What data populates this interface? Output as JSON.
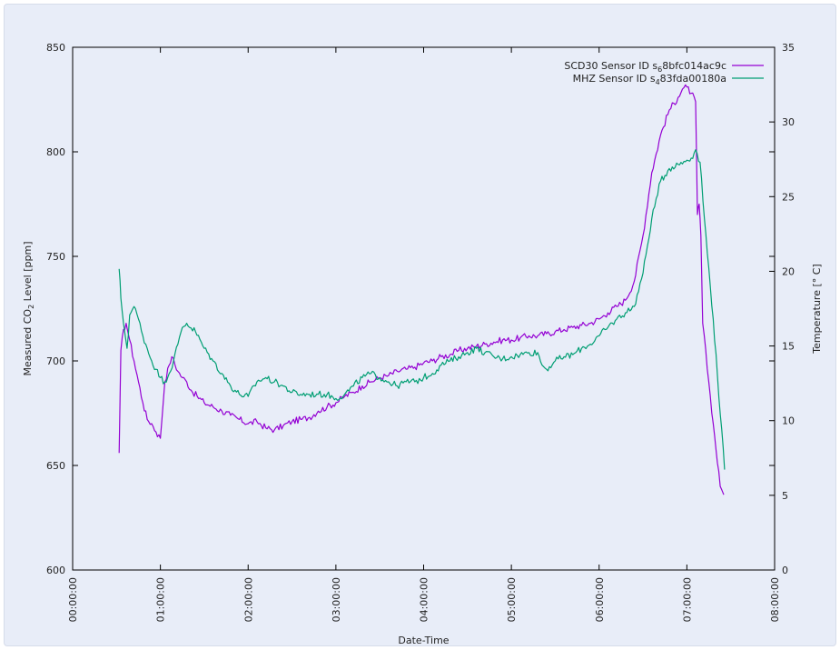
{
  "chart_data": {
    "type": "line",
    "title": "",
    "xlabel": "Date-Time",
    "ylabel": "Measured CO₂ Level [ppm]",
    "ylabel_parts": [
      "Measured CO",
      "2",
      " Level [ppm]"
    ],
    "y2label": "Temperature [° C]",
    "xlim": [
      0,
      8
    ],
    "ylim": [
      600,
      850
    ],
    "y2lim": [
      0,
      35
    ],
    "x_ticks": [
      "00:00:00",
      "01:00:00",
      "02:00:00",
      "03:00:00",
      "04:00:00",
      "05:00:00",
      "06:00:00",
      "07:00:00",
      "08:00:00"
    ],
    "y_ticks": [
      600,
      650,
      700,
      750,
      800,
      850
    ],
    "y2_ticks": [
      0,
      5,
      10,
      15,
      20,
      25,
      30,
      35
    ],
    "legend_position": "top-right",
    "grid": false,
    "series": [
      {
        "name": "SCD30 Sensor ID s₆8bfc014ac9c",
        "name_parts": [
          "SCD30 Sensor ID s",
          "6",
          "8bfc014ac9c"
        ],
        "axis": "left",
        "color": "#9400d3",
        "x": [
          0.53,
          0.55,
          0.58,
          0.61,
          0.65,
          0.7,
          0.75,
          0.8,
          0.85,
          0.9,
          0.95,
          1.0,
          1.05,
          1.1,
          1.13,
          1.2,
          1.25,
          1.3,
          1.35,
          1.42,
          1.5,
          1.6,
          1.7,
          1.8,
          1.9,
          2.0,
          2.1,
          2.2,
          2.3,
          2.4,
          2.5,
          2.6,
          2.7,
          2.8,
          2.9,
          3.0,
          3.1,
          3.2,
          3.3,
          3.4,
          3.5,
          3.6,
          3.7,
          3.8,
          3.9,
          4.0,
          4.1,
          4.2,
          4.3,
          4.4,
          4.5,
          4.6,
          4.7,
          4.8,
          4.9,
          5.0,
          5.1,
          5.2,
          5.3,
          5.4,
          5.5,
          5.6,
          5.7,
          5.8,
          5.9,
          6.0,
          6.1,
          6.2,
          6.3,
          6.4,
          6.5,
          6.6,
          6.7,
          6.8,
          6.9,
          6.95,
          7.0,
          7.05,
          7.1,
          7.12,
          7.14,
          7.16,
          7.18,
          7.25,
          7.3,
          7.38,
          7.42
        ],
        "values": [
          656,
          705,
          715,
          718,
          710,
          700,
          690,
          680,
          672,
          670,
          666,
          663,
          690,
          698,
          702,
          695,
          692,
          690,
          686,
          683,
          680,
          678,
          676,
          674,
          672,
          670,
          671,
          668,
          667,
          669,
          671,
          672,
          673,
          676,
          678,
          680,
          683,
          685,
          688,
          690,
          692,
          693,
          695,
          696,
          697,
          699,
          700,
          702,
          703,
          705,
          706,
          707,
          708,
          709,
          710,
          710,
          711,
          712,
          712,
          713,
          714,
          715,
          716,
          717,
          718,
          720,
          723,
          726,
          729,
          738,
          760,
          790,
          808,
          820,
          826,
          830,
          831,
          828,
          824,
          770,
          775,
          760,
          718,
          690,
          670,
          640,
          636
        ]
      },
      {
        "name": "MHZ Sensor ID s₄83fda00180a",
        "name_parts": [
          "MHZ Sensor ID s",
          "4",
          "83fda00180a"
        ],
        "axis": "left",
        "color": "#009e73",
        "x": [
          0.53,
          0.55,
          0.58,
          0.62,
          0.65,
          0.7,
          0.75,
          0.8,
          0.85,
          0.9,
          0.95,
          1.0,
          1.05,
          1.1,
          1.15,
          1.2,
          1.25,
          1.3,
          1.4,
          1.5,
          1.6,
          1.7,
          1.8,
          1.9,
          2.0,
          2.1,
          2.2,
          2.3,
          2.4,
          2.5,
          2.6,
          2.7,
          2.8,
          2.9,
          3.0,
          3.1,
          3.2,
          3.3,
          3.4,
          3.5,
          3.6,
          3.7,
          3.8,
          3.9,
          4.0,
          4.1,
          4.2,
          4.3,
          4.4,
          4.5,
          4.6,
          4.7,
          4.8,
          4.9,
          5.0,
          5.1,
          5.2,
          5.3,
          5.35,
          5.4,
          5.5,
          5.6,
          5.7,
          5.8,
          5.9,
          6.0,
          6.1,
          6.2,
          6.3,
          6.4,
          6.5,
          6.6,
          6.7,
          6.8,
          6.9,
          7.0,
          7.05,
          7.1,
          7.15,
          7.2,
          7.3,
          7.43
        ],
        "values": [
          744,
          730,
          718,
          706,
          722,
          726,
          720,
          712,
          706,
          700,
          696,
          692,
          690,
          694,
          700,
          708,
          716,
          718,
          714,
          706,
          700,
          694,
          688,
          684,
          683,
          690,
          692,
          690,
          688,
          685,
          684,
          684,
          684,
          684,
          682,
          684,
          688,
          692,
          694,
          692,
          690,
          688,
          690,
          690,
          692,
          694,
          698,
          700,
          702,
          704,
          706,
          704,
          702,
          701,
          702,
          703,
          704,
          704,
          698,
          696,
          700,
          702,
          703,
          706,
          708,
          712,
          716,
          720,
          723,
          726,
          742,
          768,
          786,
          792,
          794,
          796,
          797,
          801,
          795,
          768,
          720,
          648
        ]
      }
    ]
  }
}
